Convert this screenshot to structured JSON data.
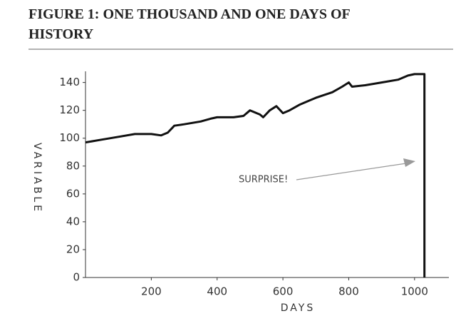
{
  "chart_data": {
    "type": "line",
    "title": "FIGURE 1: ONE THOUSAND AND ONE DAYS OF HISTORY",
    "xlabel": "DAYS",
    "ylabel": "VARIABLE",
    "annotation": "SURPRISE!",
    "x": [
      0,
      50,
      100,
      150,
      200,
      230,
      250,
      270,
      300,
      350,
      380,
      400,
      450,
      480,
      500,
      530,
      540,
      560,
      580,
      600,
      620,
      650,
      680,
      700,
      750,
      780,
      800,
      810,
      850,
      900,
      950,
      980,
      1000,
      1030,
      1030
    ],
    "values": [
      97,
      99,
      101,
      103,
      103,
      102,
      104,
      109,
      110,
      112,
      114,
      115,
      115,
      116,
      120,
      117,
      115,
      120,
      123,
      118,
      120,
      124,
      127,
      129,
      133,
      137,
      140,
      137,
      138,
      140,
      142,
      145,
      146,
      146,
      0
    ],
    "color": "#111111",
    "xlim": [
      0,
      1100
    ],
    "ylim": [
      0,
      148
    ],
    "xticks": [
      200,
      400,
      600,
      800,
      1000
    ],
    "yticks": [
      0,
      20,
      40,
      60,
      80,
      100,
      120,
      140
    ]
  }
}
